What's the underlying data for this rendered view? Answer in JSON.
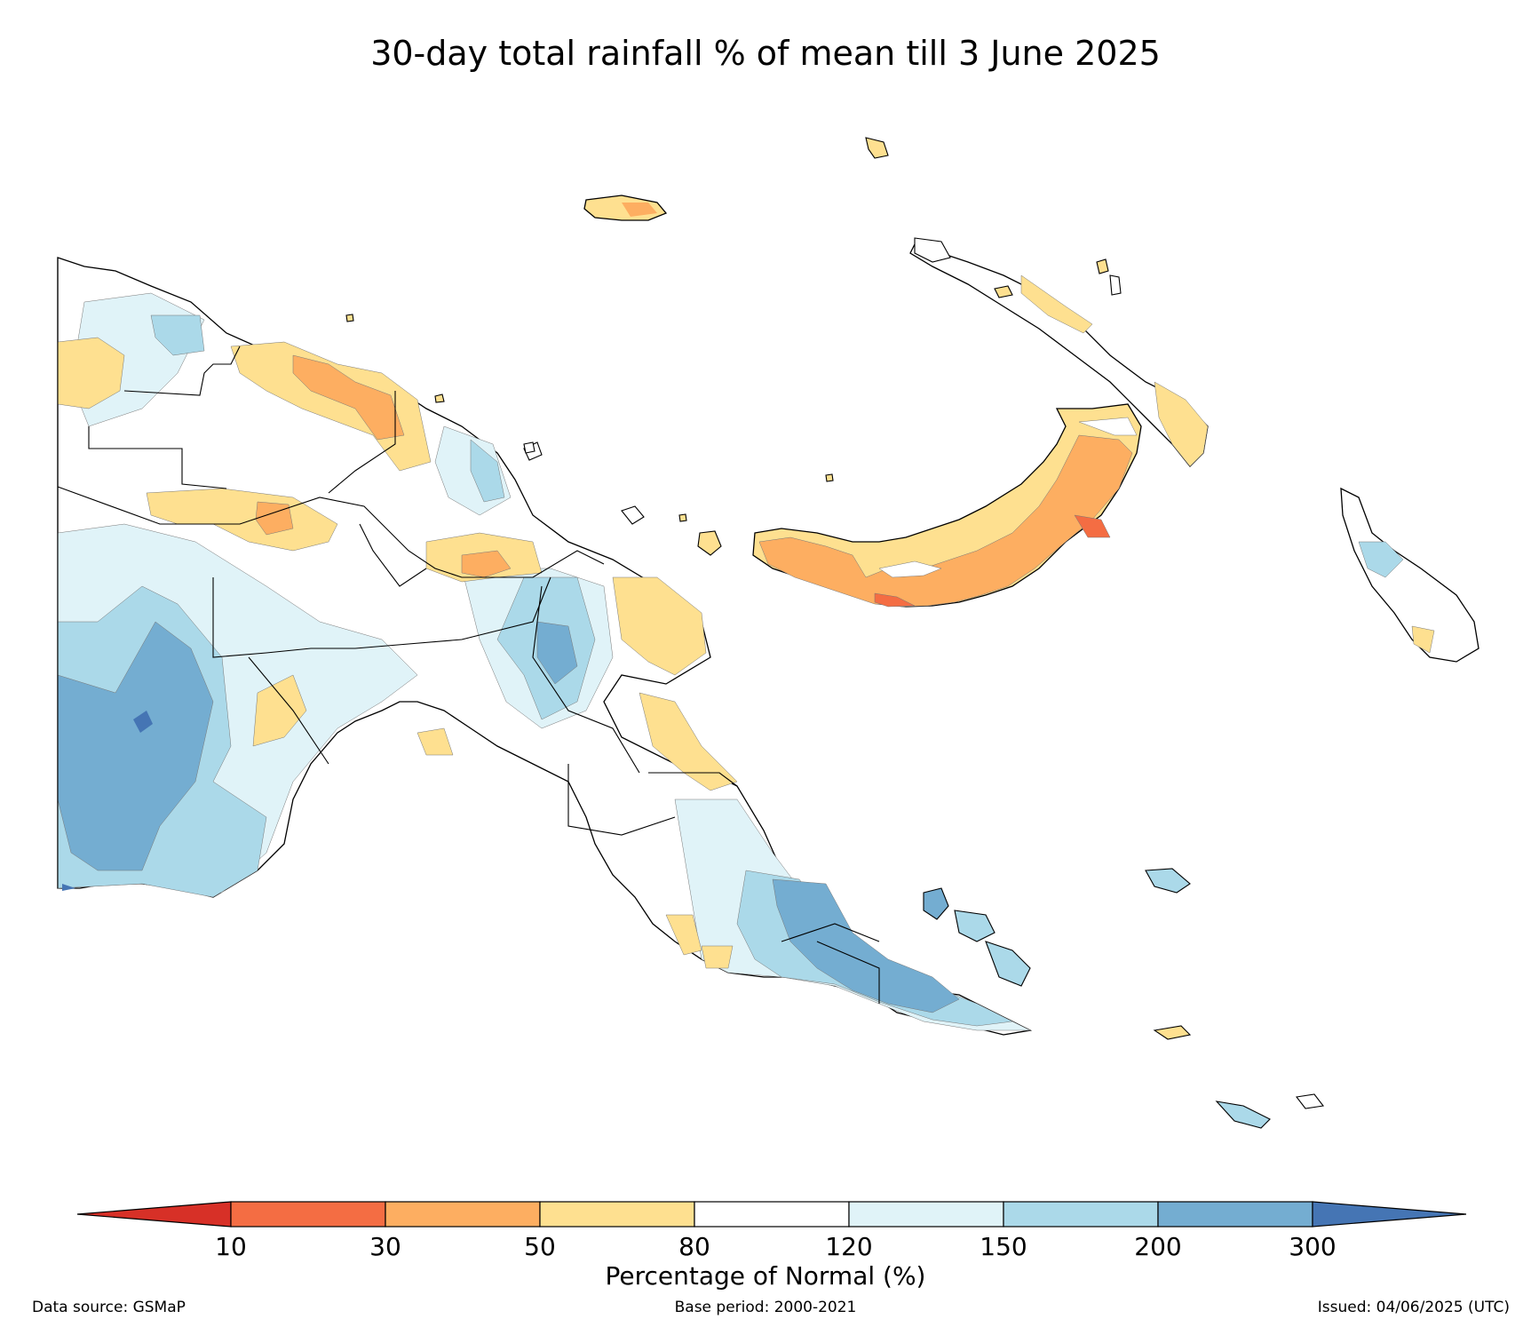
{
  "title": "30-day total rainfall % of mean till 3 June 2025",
  "colorbar": {
    "title": "Percentage of Normal (%)",
    "ticks": [
      "10",
      "30",
      "50",
      "80",
      "120",
      "150",
      "200",
      "300"
    ],
    "bins": [
      {
        "range": "<10",
        "color": "#d73027"
      },
      {
        "range": "10-30",
        "color": "#f46d43"
      },
      {
        "range": "30-50",
        "color": "#fdae61"
      },
      {
        "range": "50-80",
        "color": "#fee090"
      },
      {
        "range": "80-120",
        "color": "#ffffff"
      },
      {
        "range": "120-150",
        "color": "#e0f3f8"
      },
      {
        "range": "150-200",
        "color": "#abd9e9"
      },
      {
        "range": "200-300",
        "color": "#74add1"
      },
      {
        "range": ">300",
        "color": "#4575b4"
      }
    ]
  },
  "footer": {
    "source": "Data source: GSMaP",
    "base_period": "Base period: 2000-2021",
    "issued": "Issued: 04/06/2025 (UTC)"
  }
}
